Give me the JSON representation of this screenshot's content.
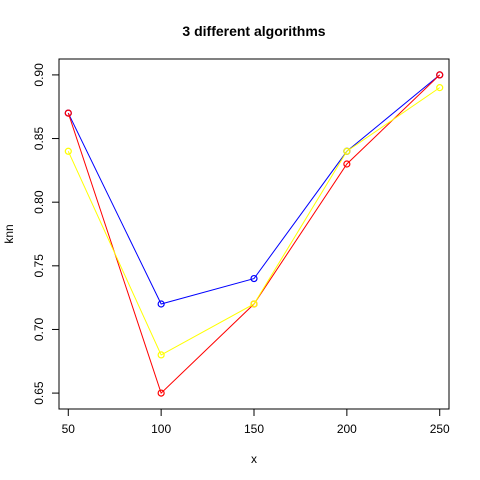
{
  "chart_data": {
    "type": "line",
    "title": "3 different algorithms",
    "xlabel": "x",
    "ylabel": "knn",
    "x": [
      50,
      100,
      150,
      200,
      250
    ],
    "xlim": [
      45,
      255
    ],
    "ylim": [
      0.6375,
      0.9125
    ],
    "xticks": [
      "50",
      "100",
      "150",
      "200",
      "250"
    ],
    "yticks": [
      "0.65",
      "0.70",
      "0.75",
      "0.80",
      "0.85",
      "0.90"
    ],
    "grid": false,
    "series": [
      {
        "color": "#0000FF",
        "values": [
          0.87,
          0.72,
          0.74,
          0.84,
          0.9
        ]
      },
      {
        "color": "#FF0000",
        "values": [
          0.87,
          0.65,
          0.72,
          0.83,
          0.9
        ]
      },
      {
        "color": "#FFFF00",
        "values": [
          0.84,
          0.68,
          0.72,
          0.84,
          0.89
        ]
      }
    ]
  }
}
